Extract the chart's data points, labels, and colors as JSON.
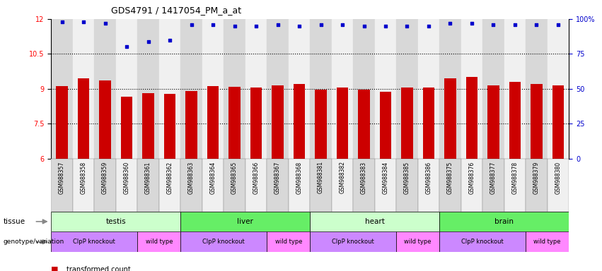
{
  "title": "GDS4791 / 1417054_PM_a_at",
  "samples": [
    "GSM988357",
    "GSM988358",
    "GSM988359",
    "GSM988360",
    "GSM988361",
    "GSM988362",
    "GSM988363",
    "GSM988364",
    "GSM988365",
    "GSM988366",
    "GSM988367",
    "GSM988368",
    "GSM988381",
    "GSM988382",
    "GSM988383",
    "GSM988384",
    "GSM988385",
    "GSM988386",
    "GSM988375",
    "GSM988376",
    "GSM988377",
    "GSM988378",
    "GSM988379",
    "GSM988380"
  ],
  "bar_values": [
    9.1,
    9.45,
    9.35,
    8.65,
    8.8,
    8.78,
    8.9,
    9.1,
    9.08,
    9.05,
    9.15,
    9.2,
    8.95,
    9.05,
    8.95,
    8.88,
    9.05,
    9.05,
    9.45,
    9.5,
    9.15,
    9.3,
    9.2,
    9.15
  ],
  "percentile_values": [
    98,
    98,
    97,
    80,
    84,
    85,
    96,
    96,
    95,
    95,
    96,
    95,
    96,
    96,
    95,
    95,
    95,
    95,
    97,
    97,
    96,
    96,
    96,
    96
  ],
  "ylim_left": [
    6,
    12
  ],
  "ylim_right": [
    0,
    100
  ],
  "yticks_left": [
    6,
    7.5,
    9,
    10.5,
    12
  ],
  "yticks_right": [
    0,
    25,
    50,
    75,
    100
  ],
  "ytick_labels_left": [
    "6",
    "7.5",
    "9",
    "10.5",
    "12"
  ],
  "ytick_labels_right": [
    "0",
    "25",
    "50",
    "75",
    "100%"
  ],
  "dotted_lines": [
    7.5,
    9.0,
    10.5
  ],
  "bar_color": "#cc0000",
  "dot_color": "#0000cc",
  "bg_colors": [
    "#d8d8d8",
    "#f0f0f0"
  ],
  "tissue_segments": [
    {
      "label": "testis",
      "start": 0,
      "end": 5,
      "color": "#ccffcc"
    },
    {
      "label": "liver",
      "start": 6,
      "end": 11,
      "color": "#66ee66"
    },
    {
      "label": "heart",
      "start": 12,
      "end": 17,
      "color": "#ccffcc"
    },
    {
      "label": "brain",
      "start": 18,
      "end": 23,
      "color": "#66ee66"
    }
  ],
  "geno_segments": [
    {
      "label": "ClpP knockout",
      "start": 0,
      "end": 3,
      "color": "#cc88ff"
    },
    {
      "label": "wild type",
      "start": 4,
      "end": 5,
      "color": "#ff88ff"
    },
    {
      "label": "ClpP knockout",
      "start": 6,
      "end": 9,
      "color": "#cc88ff"
    },
    {
      "label": "wild type",
      "start": 10,
      "end": 11,
      "color": "#ff88ff"
    },
    {
      "label": "ClpP knockout",
      "start": 12,
      "end": 15,
      "color": "#cc88ff"
    },
    {
      "label": "wild type",
      "start": 16,
      "end": 17,
      "color": "#ff88ff"
    },
    {
      "label": "ClpP knockout",
      "start": 18,
      "end": 21,
      "color": "#cc88ff"
    },
    {
      "label": "wild type",
      "start": 22,
      "end": 23,
      "color": "#ff88ff"
    }
  ],
  "label_fontsize": 7,
  "tick_label_fontsize": 6,
  "title_fontsize": 9
}
